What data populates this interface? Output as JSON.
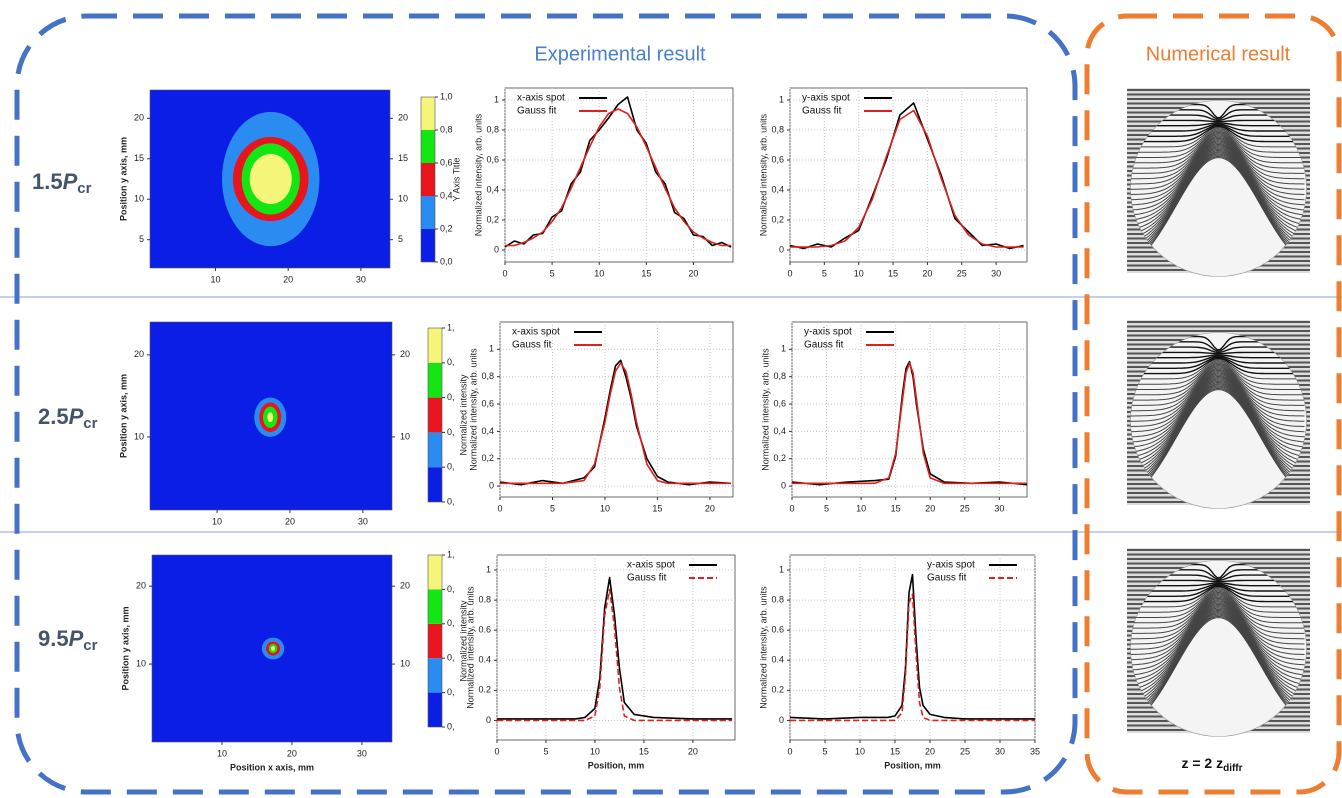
{
  "header": {
    "experimental": "Experimental result",
    "numerical": "Numerical result"
  },
  "row_labels": [
    {
      "value": "1.5",
      "symbol": "P",
      "subscript": "cr"
    },
    {
      "value": "2.5",
      "symbol": "P",
      "subscript": "cr"
    },
    {
      "value": "9.5",
      "symbol": "P",
      "subscript": "cr"
    }
  ],
  "footer": {
    "text": "z = 2 z",
    "subscript": "diffr"
  },
  "chart_data": [
    {
      "type": "spot",
      "ylabel": "Position y axis, mm",
      "xlim": [
        1,
        34
      ],
      "ylim": [
        1.5,
        23.5
      ],
      "xticks": [
        10,
        20,
        30
      ],
      "yticks": [
        5,
        10,
        15,
        20
      ],
      "y2lim": [
        1.5,
        23.5
      ],
      "y2ticks": [
        5,
        10,
        15,
        20
      ],
      "center": [
        17.6,
        12.5
      ],
      "contours": [
        {
          "level": 0.2,
          "rx": 6.7,
          "ry": 8.3
        },
        {
          "level": 0.4,
          "rx": 5.2,
          "ry": 5.2
        },
        {
          "level": 0.6,
          "rx": 4,
          "ry": 4.4
        },
        {
          "level": 0.8,
          "rx": 2.9,
          "ry": 3.1
        }
      ],
      "colorbar": {
        "title": "Y Axis Title",
        "clim": [
          0,
          1
        ],
        "ticks": [
          {
            "value": 0,
            "label": "0,0"
          },
          {
            "value": 0.2,
            "label": "0,2"
          },
          {
            "value": 0.4,
            "label": "0,4"
          },
          {
            "value": 0.6,
            "label": "0,6"
          },
          {
            "value": 0.8,
            "label": "0,8"
          },
          {
            "value": 1,
            "label": "1,0"
          }
        ],
        "colors": [
          "#0a1ee6",
          "#2a8cf0",
          "#e8141e",
          "#14e614",
          "#f5f57a"
        ]
      }
    },
    {
      "type": "line",
      "ylabel": "Normalized intensity, arb. units",
      "legend": "upper left",
      "grid": true,
      "xlim": [
        0,
        24.2
      ],
      "ylim": [
        -0.08,
        1.08
      ],
      "xticks": [
        0,
        5,
        10,
        15,
        20
      ],
      "yticks": [
        0,
        {
          "value": 0.2,
          "label": "0,2"
        },
        {
          "value": 0.4,
          "label": "0,4"
        },
        {
          "value": 0.6,
          "label": "0,6"
        },
        {
          "value": 0.8,
          "label": "0,8"
        },
        1
      ],
      "x": [
        0,
        1,
        2,
        3,
        4,
        5,
        6,
        7,
        8,
        9,
        10,
        11,
        12,
        13,
        14,
        15,
        16,
        17,
        18,
        19,
        20,
        21,
        22,
        23,
        24
      ],
      "series": [
        {
          "name": "x-axis spot",
          "color": "#000000",
          "line_style": "solid",
          "values": [
            0.02,
            0.06,
            0.04,
            0.1,
            0.11,
            0.22,
            0.26,
            0.44,
            0.52,
            0.73,
            0.8,
            0.88,
            0.97,
            1.02,
            0.8,
            0.71,
            0.52,
            0.44,
            0.25,
            0.21,
            0.1,
            0.09,
            0.03,
            0.05,
            0.02
          ]
        },
        {
          "name": "Gauss fit",
          "color": "#e0201c",
          "line_style": "solid",
          "values": [
            0.03,
            0.03,
            0.05,
            0.08,
            0.12,
            0.19,
            0.28,
            0.41,
            0.55,
            0.69,
            0.82,
            0.91,
            0.94,
            0.91,
            0.82,
            0.69,
            0.55,
            0.41,
            0.28,
            0.19,
            0.12,
            0.08,
            0.05,
            0.03,
            0.03
          ]
        }
      ]
    },
    {
      "type": "line",
      "ylabel": "Normalized intensity, arb. units",
      "legend": "upper left",
      "grid": true,
      "xlim": [
        0,
        34.5
      ],
      "ylim": [
        -0.08,
        1.08
      ],
      "xticks": [
        0,
        5,
        10,
        15,
        20,
        25,
        30
      ],
      "yticks": [
        0,
        {
          "value": 0.2,
          "label": "0,2"
        },
        {
          "value": 0.4,
          "label": "0,4"
        },
        {
          "value": 0.6,
          "label": "0,6"
        },
        {
          "value": 0.8,
          "label": "0,8"
        },
        1
      ],
      "x": [
        0,
        2,
        4,
        6,
        8,
        10,
        12,
        14,
        16,
        18,
        20,
        22,
        24,
        26,
        28,
        30,
        32,
        34
      ],
      "series": [
        {
          "name": "y-axis spot",
          "color": "#000000",
          "line_style": "solid",
          "values": [
            0.03,
            0.01,
            0.04,
            0.02,
            0.08,
            0.13,
            0.36,
            0.6,
            0.9,
            0.98,
            0.74,
            0.5,
            0.21,
            0.12,
            0.03,
            0.04,
            0.01,
            0.03
          ]
        },
        {
          "name": "Gauss fit",
          "color": "#e0201c",
          "line_style": "solid",
          "values": [
            0.02,
            0.02,
            0.02,
            0.03,
            0.06,
            0.15,
            0.34,
            0.62,
            0.87,
            0.93,
            0.76,
            0.48,
            0.23,
            0.1,
            0.04,
            0.02,
            0.02,
            0.02
          ]
        }
      ]
    },
    {
      "type": "spot",
      "ylabel": "Position y axis, mm",
      "xlim": [
        0.8,
        34
      ],
      "ylim": [
        1.1,
        24
      ],
      "xticks": [
        10,
        20,
        30
      ],
      "yticks": [
        10,
        20
      ],
      "y2lim": [
        1.1,
        24
      ],
      "y2ticks": [
        10,
        20
      ],
      "center": [
        17.3,
        12.4
      ],
      "contours": [
        {
          "level": 0.2,
          "rx": 2.2,
          "ry": 2.4
        },
        {
          "level": 0.4,
          "rx": 1.5,
          "ry": 1.8
        },
        {
          "level": 0.6,
          "rx": 1,
          "ry": 1.3
        },
        {
          "level": 0.8,
          "rx": 0.4,
          "ry": 0.6
        }
      ],
      "colorbar": {
        "title": "Normalized intensity",
        "clim": [
          0,
          1
        ],
        "ticks": [
          {
            "value": 0,
            "label": "0,"
          },
          {
            "value": 0.2,
            "label": "0,"
          },
          {
            "value": 0.4,
            "label": "0,"
          },
          {
            "value": 0.6,
            "label": "0,"
          },
          {
            "value": 0.8,
            "label": "0,"
          },
          {
            "value": 1,
            "label": "1,"
          }
        ],
        "colors": [
          "#0a1ee6",
          "#2a8cf0",
          "#e8141e",
          "#14e614",
          "#f5f57a"
        ]
      }
    },
    {
      "type": "line",
      "ylabel": "Normalized intensity, arb. units",
      "legend": "upper left",
      "grid": true,
      "xlim": [
        0,
        22.2
      ],
      "ylim": [
        -0.08,
        1.2
      ],
      "xticks": [
        0,
        5,
        10,
        15,
        20
      ],
      "yticks": [
        0,
        {
          "value": 0.2,
          "label": "0,2"
        },
        {
          "value": 0.4,
          "label": "0,4"
        },
        {
          "value": 0.6,
          "label": "0,6"
        },
        {
          "value": 0.8,
          "label": "0,8"
        },
        1
      ],
      "x": [
        0,
        2,
        4,
        6,
        8,
        9,
        10,
        10.5,
        11,
        11.5,
        12,
        12.5,
        13,
        14,
        15,
        16,
        18,
        20,
        22
      ],
      "series": [
        {
          "name": "x-axis spot",
          "color": "#000000",
          "line_style": "solid",
          "values": [
            0.03,
            0.01,
            0.04,
            0.02,
            0.06,
            0.14,
            0.5,
            0.7,
            0.88,
            0.92,
            0.8,
            0.64,
            0.44,
            0.2,
            0.07,
            0.03,
            0.01,
            0.03,
            0.02
          ]
        },
        {
          "name": "Gauss fit",
          "color": "#e0201c",
          "line_style": "solid",
          "values": [
            0.02,
            0.02,
            0.02,
            0.02,
            0.04,
            0.16,
            0.47,
            0.67,
            0.84,
            0.9,
            0.84,
            0.67,
            0.47,
            0.16,
            0.04,
            0.02,
            0.02,
            0.02,
            0.02
          ]
        }
      ]
    },
    {
      "type": "line",
      "ylabel": "Normalized intensity, arb. units",
      "legend": "upper left",
      "grid": true,
      "xlim": [
        0,
        34
      ],
      "ylim": [
        -0.08,
        1.2
      ],
      "xticks": [
        0,
        5,
        10,
        15,
        20,
        25,
        30
      ],
      "yticks": [
        0,
        {
          "value": 0.2,
          "label": "0,2"
        },
        {
          "value": 0.4,
          "label": "0,4"
        },
        {
          "value": 0.6,
          "label": "0,6"
        },
        {
          "value": 0.8,
          "label": "0,8"
        },
        1
      ],
      "x": [
        0,
        4,
        8,
        12,
        14,
        15,
        16,
        16.5,
        17,
        17.5,
        18,
        19,
        20,
        22,
        26,
        30,
        34
      ],
      "series": [
        {
          "name": "y-axis spot",
          "color": "#000000",
          "line_style": "solid",
          "values": [
            0.03,
            0.01,
            0.03,
            0.04,
            0.05,
            0.22,
            0.68,
            0.86,
            0.91,
            0.8,
            0.6,
            0.27,
            0.09,
            0.03,
            0.02,
            0.03,
            0.01
          ]
        },
        {
          "name": "Gauss fit",
          "color": "#e0201c",
          "line_style": "solid",
          "values": [
            0.02,
            0.02,
            0.02,
            0.02,
            0.06,
            0.24,
            0.64,
            0.83,
            0.9,
            0.83,
            0.64,
            0.24,
            0.06,
            0.02,
            0.02,
            0.02,
            0.02
          ]
        }
      ]
    },
    {
      "type": "spot",
      "ylabel": "Position y axis, mm",
      "xlabel": "Position x axis, mm",
      "xlim": [
        0,
        34.3
      ],
      "ylim": [
        0,
        24
      ],
      "xticks": [
        10,
        20,
        30
      ],
      "yticks": [
        10,
        20
      ],
      "y2lim": [
        0,
        24
      ],
      "y2ticks": [
        10,
        20
      ],
      "center": [
        17.3,
        12
      ],
      "contours": [
        {
          "level": 0.2,
          "rx": 1.6,
          "ry": 1.4
        },
        {
          "level": 0.4,
          "rx": 1,
          "ry": 0.9
        },
        {
          "level": 0.6,
          "rx": 0.6,
          "ry": 0.6
        },
        {
          "level": 0.8,
          "rx": 0.3,
          "ry": 0.3
        }
      ],
      "colorbar": {
        "title": "Normalized intensity",
        "clim": [
          0,
          1
        ],
        "ticks": [
          {
            "value": 0,
            "label": "0,"
          },
          {
            "value": 0.2,
            "label": "0,"
          },
          {
            "value": 0.4,
            "label": "0,"
          },
          {
            "value": 0.6,
            "label": "0,"
          },
          {
            "value": 0.8,
            "label": "0,"
          },
          {
            "value": 1,
            "label": "1,"
          }
        ],
        "colors": [
          "#0a1ee6",
          "#2a8cf0",
          "#e8141e",
          "#14e614",
          "#f5f57a"
        ]
      }
    },
    {
      "type": "line",
      "ylabel": "Normalized intensity, arb. units",
      "xlabel": "Position, mm",
      "legend": "upper right",
      "grid": true,
      "xlim": [
        0,
        24.3
      ],
      "ylim": [
        -0.13,
        1.1
      ],
      "xticks": [
        0,
        5,
        10,
        15,
        20
      ],
      "yticks": [
        0,
        0.2,
        0.4,
        0.6,
        0.8,
        1
      ],
      "x": [
        0,
        4,
        8,
        9,
        10,
        10.5,
        11,
        11.5,
        12,
        12.5,
        13,
        14,
        16,
        20,
        24
      ],
      "series": [
        {
          "name": "x-axis spot",
          "color": "#000000",
          "line_style": "solid",
          "values": [
            0.01,
            0.01,
            0.01,
            0.02,
            0.08,
            0.28,
            0.75,
            0.95,
            0.7,
            0.35,
            0.12,
            0.04,
            0.02,
            0.01,
            0.01
          ]
        },
        {
          "name": "Gauss fit",
          "color": "#e0201c",
          "line_style": "dashed",
          "values": [
            0,
            0,
            0,
            0,
            0.03,
            0.22,
            0.7,
            0.87,
            0.62,
            0.22,
            0.03,
            0,
            0,
            0,
            0
          ]
        }
      ]
    },
    {
      "type": "line",
      "ylabel": "Normalized intensity, arb. units",
      "xlabel": "Position, mm",
      "legend": "upper right",
      "grid": true,
      "xlim": [
        0,
        35
      ],
      "ylim": [
        -0.13,
        1.1
      ],
      "xticks": [
        0,
        5,
        10,
        15,
        20,
        25,
        30,
        35
      ],
      "yticks": [
        0,
        0.2,
        0.4,
        0.6,
        0.8,
        1
      ],
      "x": [
        0,
        5,
        10,
        14,
        15,
        16,
        16.5,
        17,
        17.5,
        18,
        18.5,
        19,
        20,
        22,
        25,
        30,
        35
      ],
      "series": [
        {
          "name": "y-axis spot",
          "color": "#000000",
          "line_style": "solid",
          "values": [
            0.02,
            0.01,
            0.02,
            0.02,
            0.03,
            0.1,
            0.35,
            0.85,
            0.97,
            0.55,
            0.22,
            0.1,
            0.04,
            0.02,
            0.01,
            0.01,
            0.01
          ]
        },
        {
          "name": "Gauss fit",
          "color": "#e0201c",
          "line_style": "dashed",
          "values": [
            0,
            0,
            0,
            0,
            0,
            0.05,
            0.3,
            0.78,
            0.84,
            0.45,
            0.12,
            0.02,
            0,
            0,
            0,
            0,
            0
          ]
        }
      ]
    }
  ]
}
